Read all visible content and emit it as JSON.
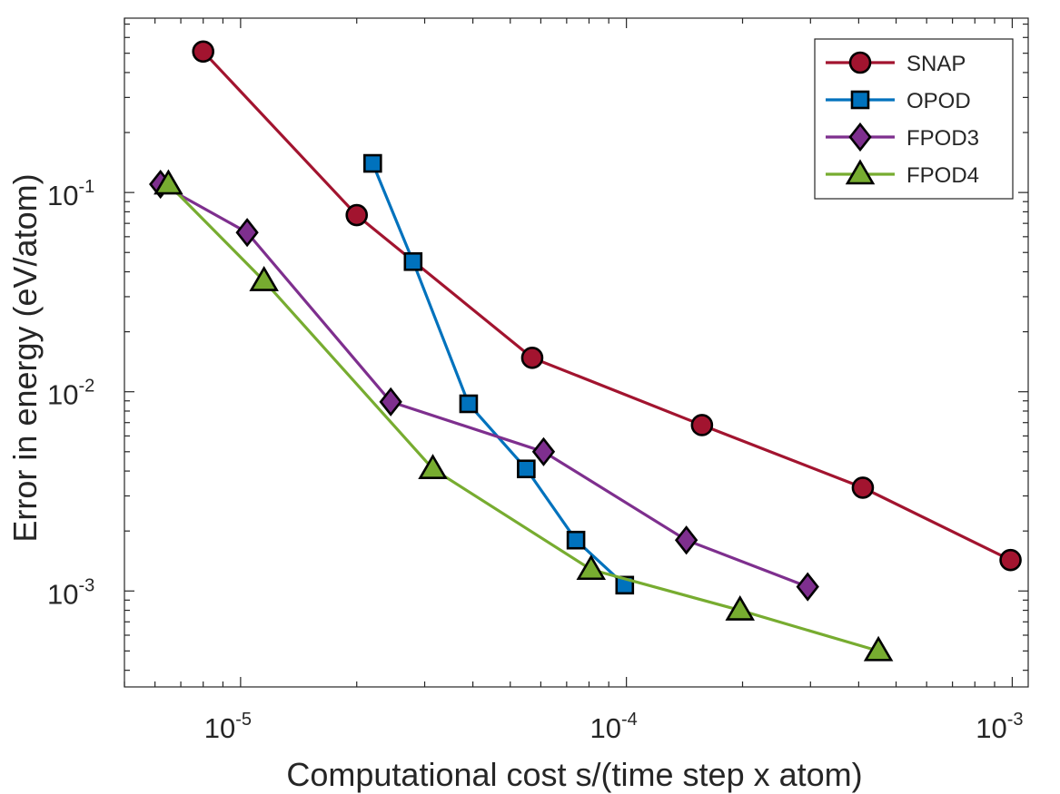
{
  "chart_data": {
    "type": "line",
    "xscale": "log",
    "yscale": "log",
    "xlabel": "Computational cost s/(time step x atom)",
    "ylabel": "Error in energy (eV/atom)",
    "xlim": [
      5e-06,
      0.0011
    ],
    "ylim": [
      0.00033,
      0.75
    ],
    "grid": false,
    "legend_position": "top-right",
    "xticks": [
      {
        "value": 1e-05,
        "base": "10",
        "exp": "-5"
      },
      {
        "value": 0.0001,
        "base": "10",
        "exp": "-4"
      },
      {
        "value": 0.001,
        "base": "10",
        "exp": "-3"
      }
    ],
    "yticks": [
      {
        "value": 0.001,
        "base": "10",
        "exp": "-3"
      },
      {
        "value": 0.01,
        "base": "10",
        "exp": "-2"
      },
      {
        "value": 0.1,
        "base": "10",
        "exp": "-1"
      }
    ],
    "series": [
      {
        "name": "SNAP",
        "color": "#A2142F",
        "marker": "circle",
        "x": [
          8e-06,
          2e-05,
          5.7e-05,
          0.000157,
          0.00041,
          0.00099
        ],
        "y": [
          0.51,
          0.077,
          0.0148,
          0.0068,
          0.0033,
          0.00143
        ]
      },
      {
        "name": "OPOD",
        "color": "#0072BD",
        "marker": "square",
        "x": [
          2.2e-05,
          2.8e-05,
          3.9e-05,
          5.5e-05,
          7.4e-05,
          9.9e-05
        ],
        "y": [
          0.14,
          0.045,
          0.0087,
          0.0041,
          0.0018,
          0.00107
        ]
      },
      {
        "name": "FPOD3",
        "color": "#7E2F8E",
        "marker": "diamond",
        "x": [
          6.2e-06,
          1.04e-05,
          2.45e-05,
          6.1e-05,
          0.000143,
          0.000295
        ],
        "y": [
          0.11,
          0.063,
          0.0089,
          0.005,
          0.0018,
          0.00105
        ]
      },
      {
        "name": "FPOD4",
        "color": "#77AC30",
        "marker": "triangle",
        "x": [
          6.5e-06,
          1.15e-05,
          3.15e-05,
          8.1e-05,
          0.000197,
          0.00045
        ],
        "y": [
          0.11,
          0.036,
          0.0041,
          0.00128,
          0.0008,
          0.0005
        ]
      }
    ]
  }
}
